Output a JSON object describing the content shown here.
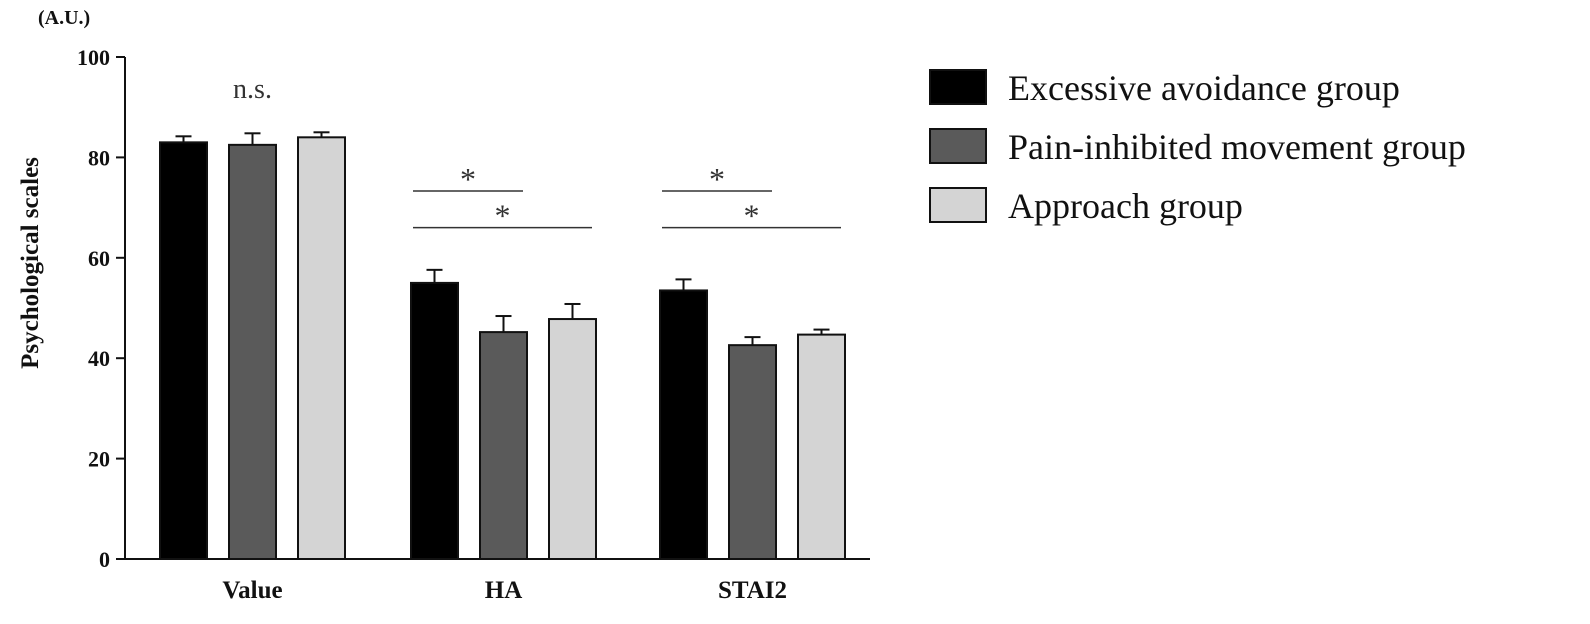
{
  "chart_data": {
    "type": "bar",
    "title": "",
    "unit_label": "(A.U.)",
    "ylabel": "Psychological scales",
    "xlabel": "",
    "ylim": [
      0,
      100
    ],
    "yticks": [
      0,
      20,
      40,
      60,
      80,
      100
    ],
    "categories": [
      "Value",
      "HA",
      "STAI2"
    ],
    "legend_position": "right",
    "series": [
      {
        "name": "Excessive avoidance group",
        "color": "#000000",
        "values": [
          83,
          55,
          53.5
        ],
        "errors": [
          1.2,
          2.6,
          2.2
        ]
      },
      {
        "name": "Pain-inhibited movement group",
        "color": "#5a5a5a",
        "values": [
          82.5,
          45.2,
          42.6
        ],
        "errors": [
          2.3,
          3.2,
          1.6
        ]
      },
      {
        "name": "Approach group",
        "color": "#d4d4d4",
        "values": [
          84,
          47.8,
          44.7
        ],
        "errors": [
          1.0,
          3.0,
          1.0
        ]
      }
    ],
    "annotations": [
      {
        "category": "Value",
        "text": "n.s."
      },
      {
        "category": "HA",
        "text": "*",
        "from": 0,
        "to": 1,
        "y": 73.3
      },
      {
        "category": "HA",
        "text": "*",
        "from": 0,
        "to": 2,
        "y": 66.0
      },
      {
        "category": "STAI2",
        "text": "*",
        "from": 0,
        "to": 1,
        "y": 73.3
      },
      {
        "category": "STAI2",
        "text": "*",
        "from": 0,
        "to": 2,
        "y": 66.0
      }
    ]
  }
}
